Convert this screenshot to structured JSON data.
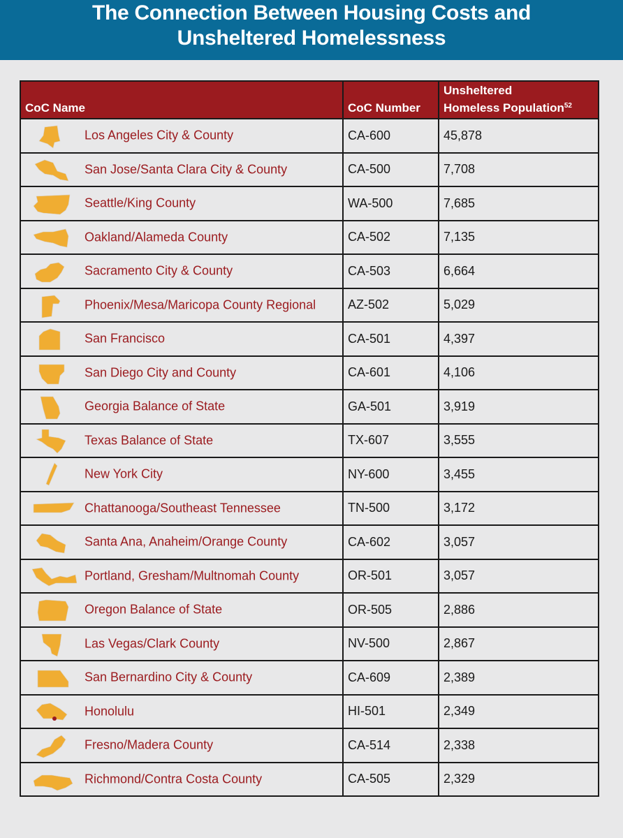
{
  "banner": {
    "title_line1": "The Connection Between Housing Costs and",
    "title_line2": "Unsheltered Homelessness"
  },
  "colors": {
    "banner": "#0a6b98",
    "header": "#9b1b1f",
    "shape": "#f0ad32",
    "name_text": "#9b1b1f"
  },
  "table": {
    "headers": {
      "name": "CoC Name",
      "number": "CoC Number",
      "population_line1": "Unsheltered",
      "population_line2": "Homeless Population",
      "population_footnote": "52"
    },
    "rows": [
      {
        "name": "Los Angeles City & County",
        "number": "CA-600",
        "population": "45,878",
        "icon": "los-angeles-county-shape-icon"
      },
      {
        "name": "San Jose/Santa Clara City & County",
        "number": "CA-500",
        "population": "7,708",
        "icon": "santa-clara-county-shape-icon"
      },
      {
        "name": "Seattle/King County",
        "number": "WA-500",
        "population": "7,685",
        "icon": "king-county-shape-icon"
      },
      {
        "name": "Oakland/Alameda County",
        "number": "CA-502",
        "population": "7,135",
        "icon": "alameda-county-shape-icon"
      },
      {
        "name": "Sacramento City & County",
        "number": "CA-503",
        "population": "6,664",
        "icon": "sacramento-county-shape-icon"
      },
      {
        "name": "Phoenix/Mesa/Maricopa County Regional",
        "number": "AZ-502",
        "population": "5,029",
        "icon": "maricopa-county-shape-icon"
      },
      {
        "name": "San Francisco",
        "number": "CA-501",
        "population": "4,397",
        "icon": "san-francisco-shape-icon"
      },
      {
        "name": "San Diego City and County",
        "number": "CA-601",
        "population": "4,106",
        "icon": "san-diego-county-shape-icon"
      },
      {
        "name": "Georgia Balance of State",
        "number": "GA-501",
        "population": "3,919",
        "icon": "georgia-shape-icon"
      },
      {
        "name": "Texas Balance of State",
        "number": "TX-607",
        "population": "3,555",
        "icon": "texas-shape-icon"
      },
      {
        "name": "New York City",
        "number": "NY-600",
        "population": "3,455",
        "icon": "new-york-city-shape-icon"
      },
      {
        "name": "Chattanooga/Southeast Tennessee",
        "number": "TN-500",
        "population": "3,172",
        "icon": "tennessee-shape-icon"
      },
      {
        "name": "Santa Ana, Anaheim/Orange County",
        "number": "CA-602",
        "population": "3,057",
        "icon": "orange-county-shape-icon"
      },
      {
        "name": "Portland, Gresham/Multnomah County",
        "number": "OR-501",
        "population": "3,057",
        "icon": "multnomah-county-shape-icon"
      },
      {
        "name": "Oregon Balance of State",
        "number": "OR-505",
        "population": "2,886",
        "icon": "oregon-shape-icon"
      },
      {
        "name": "Las Vegas/Clark County",
        "number": "NV-500",
        "population": "2,867",
        "icon": "clark-county-shape-icon"
      },
      {
        "name": "San Bernardino City & County",
        "number": "CA-609",
        "population": "2,389",
        "icon": "san-bernardino-county-shape-icon"
      },
      {
        "name": "Honolulu",
        "number": "HI-501",
        "population": "2,349",
        "icon": "oahu-shape-icon"
      },
      {
        "name": "Fresno/Madera County",
        "number": "CA-514",
        "population": "2,338",
        "icon": "fresno-county-shape-icon"
      },
      {
        "name": "Richmond/Contra Costa County",
        "number": "CA-505",
        "population": "2,329",
        "icon": "contra-costa-county-shape-icon"
      }
    ]
  }
}
